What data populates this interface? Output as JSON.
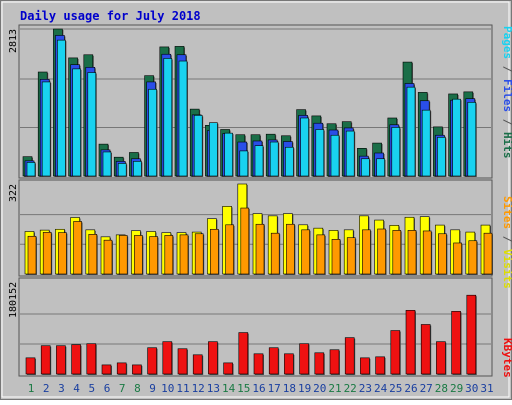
{
  "chart_data": [
    {
      "type": "bar",
      "title": "Daily usage for July 2018",
      "ymax_label": "2813",
      "ymax": 2813,
      "series": [
        {
          "name": "Hits",
          "values": [
            370,
            1990,
            2813,
            2260,
            2320,
            610,
            360,
            450,
            1920,
            2470,
            2480,
            1280,
            970,
            890,
            790,
            790,
            800,
            770,
            1270,
            1150,
            1000,
            1040,
            530,
            630,
            1110,
            2180,
            1600,
            940,
            1570,
            1610,
            0
          ]
        },
        {
          "name": "Files",
          "values": [
            290,
            1850,
            2690,
            2130,
            2080,
            500,
            280,
            330,
            1800,
            2330,
            2320,
            1170,
            870,
            810,
            650,
            670,
            690,
            660,
            1160,
            1010,
            880,
            920,
            380,
            440,
            980,
            1770,
            1440,
            780,
            1450,
            1480,
            0
          ]
        },
        {
          "name": "Pages",
          "values": [
            260,
            1800,
            2600,
            2050,
            1980,
            460,
            240,
            280,
            1660,
            2250,
            2200,
            1160,
            1020,
            820,
            480,
            580,
            650,
            550,
            1110,
            890,
            780,
            860,
            330,
            330,
            930,
            1700,
            1260,
            740,
            1470,
            1410,
            0
          ]
        }
      ],
      "colors": {
        "Hits": "#1a6e48",
        "Files": "#2a4ee8",
        "Pages": "#19d2f0"
      }
    },
    {
      "type": "bar",
      "ymax_label": "322",
      "ymax": 322,
      "series": [
        {
          "name": "Visits",
          "values": [
            152,
            157,
            160,
            202,
            158,
            133,
            140,
            155,
            152,
            148,
            148,
            150,
            198,
            242,
            322,
            216,
            208,
            216,
            176,
            164,
            156,
            158,
            208,
            193,
            174,
            203,
            205,
            175,
            158,
            150,
            175
          ]
        },
        {
          "name": "Sites",
          "values": [
            135,
            149,
            148,
            188,
            142,
            121,
            138,
            138,
            134,
            138,
            140,
            144,
            160,
            176,
            236,
            178,
            146,
            178,
            158,
            140,
            124,
            130,
            158,
            161,
            156,
            156,
            154,
            144,
            111,
            119,
            146
          ]
        }
      ],
      "colors": {
        "Visits": "#ffff00",
        "Sites": "#ff9900"
      }
    },
    {
      "type": "bar",
      "ymax_label": "180152",
      "ymax": 180152,
      "series": [
        {
          "name": "KBytes",
          "values": [
            32000,
            56000,
            56000,
            58000,
            60000,
            18000,
            22000,
            18000,
            52000,
            64000,
            50000,
            38000,
            64000,
            22000,
            82000,
            40000,
            52000,
            40000,
            60000,
            42000,
            48000,
            72000,
            32000,
            34000,
            86000,
            126000,
            98000,
            64000,
            124000,
            156000,
            0
          ]
        }
      ],
      "colors": {
        "KBytes": "#ee1111"
      }
    }
  ],
  "days": [
    "1",
    "2",
    "3",
    "4",
    "5",
    "6",
    "7",
    "8",
    "9",
    "10",
    "11",
    "12",
    "13",
    "14",
    "15",
    "16",
    "17",
    "18",
    "19",
    "20",
    "21",
    "22",
    "23",
    "24",
    "25",
    "26",
    "27",
    "28",
    "29",
    "30",
    "31"
  ],
  "weekend_days": [
    "1",
    "7",
    "8",
    "14",
    "15",
    "21",
    "22",
    "28",
    "29"
  ],
  "legend": {
    "top": [
      {
        "text": "Pages",
        "color": "#19d2f0"
      },
      {
        "text": " / ",
        "color": "#555555"
      },
      {
        "text": "Files",
        "color": "#2a4ee8"
      },
      {
        "text": " / ",
        "color": "#555555"
      },
      {
        "text": "Hits",
        "color": "#1a6e48"
      }
    ],
    "middle": [
      {
        "text": "Sites",
        "color": "#ff9900"
      },
      {
        "text": " / ",
        "color": "#555555"
      },
      {
        "text": "Visits",
        "color": "#dddd00"
      }
    ],
    "bottom": [
      {
        "text": "KBytes",
        "color": "#ee1111"
      }
    ]
  },
  "colors": {
    "plot_bg": "#c0c0c0",
    "frame_bg": "#c0c0c0",
    "title": "#0000cc",
    "weekday_label": "#1a3fa0",
    "weekend_label": "#1a7a44"
  }
}
